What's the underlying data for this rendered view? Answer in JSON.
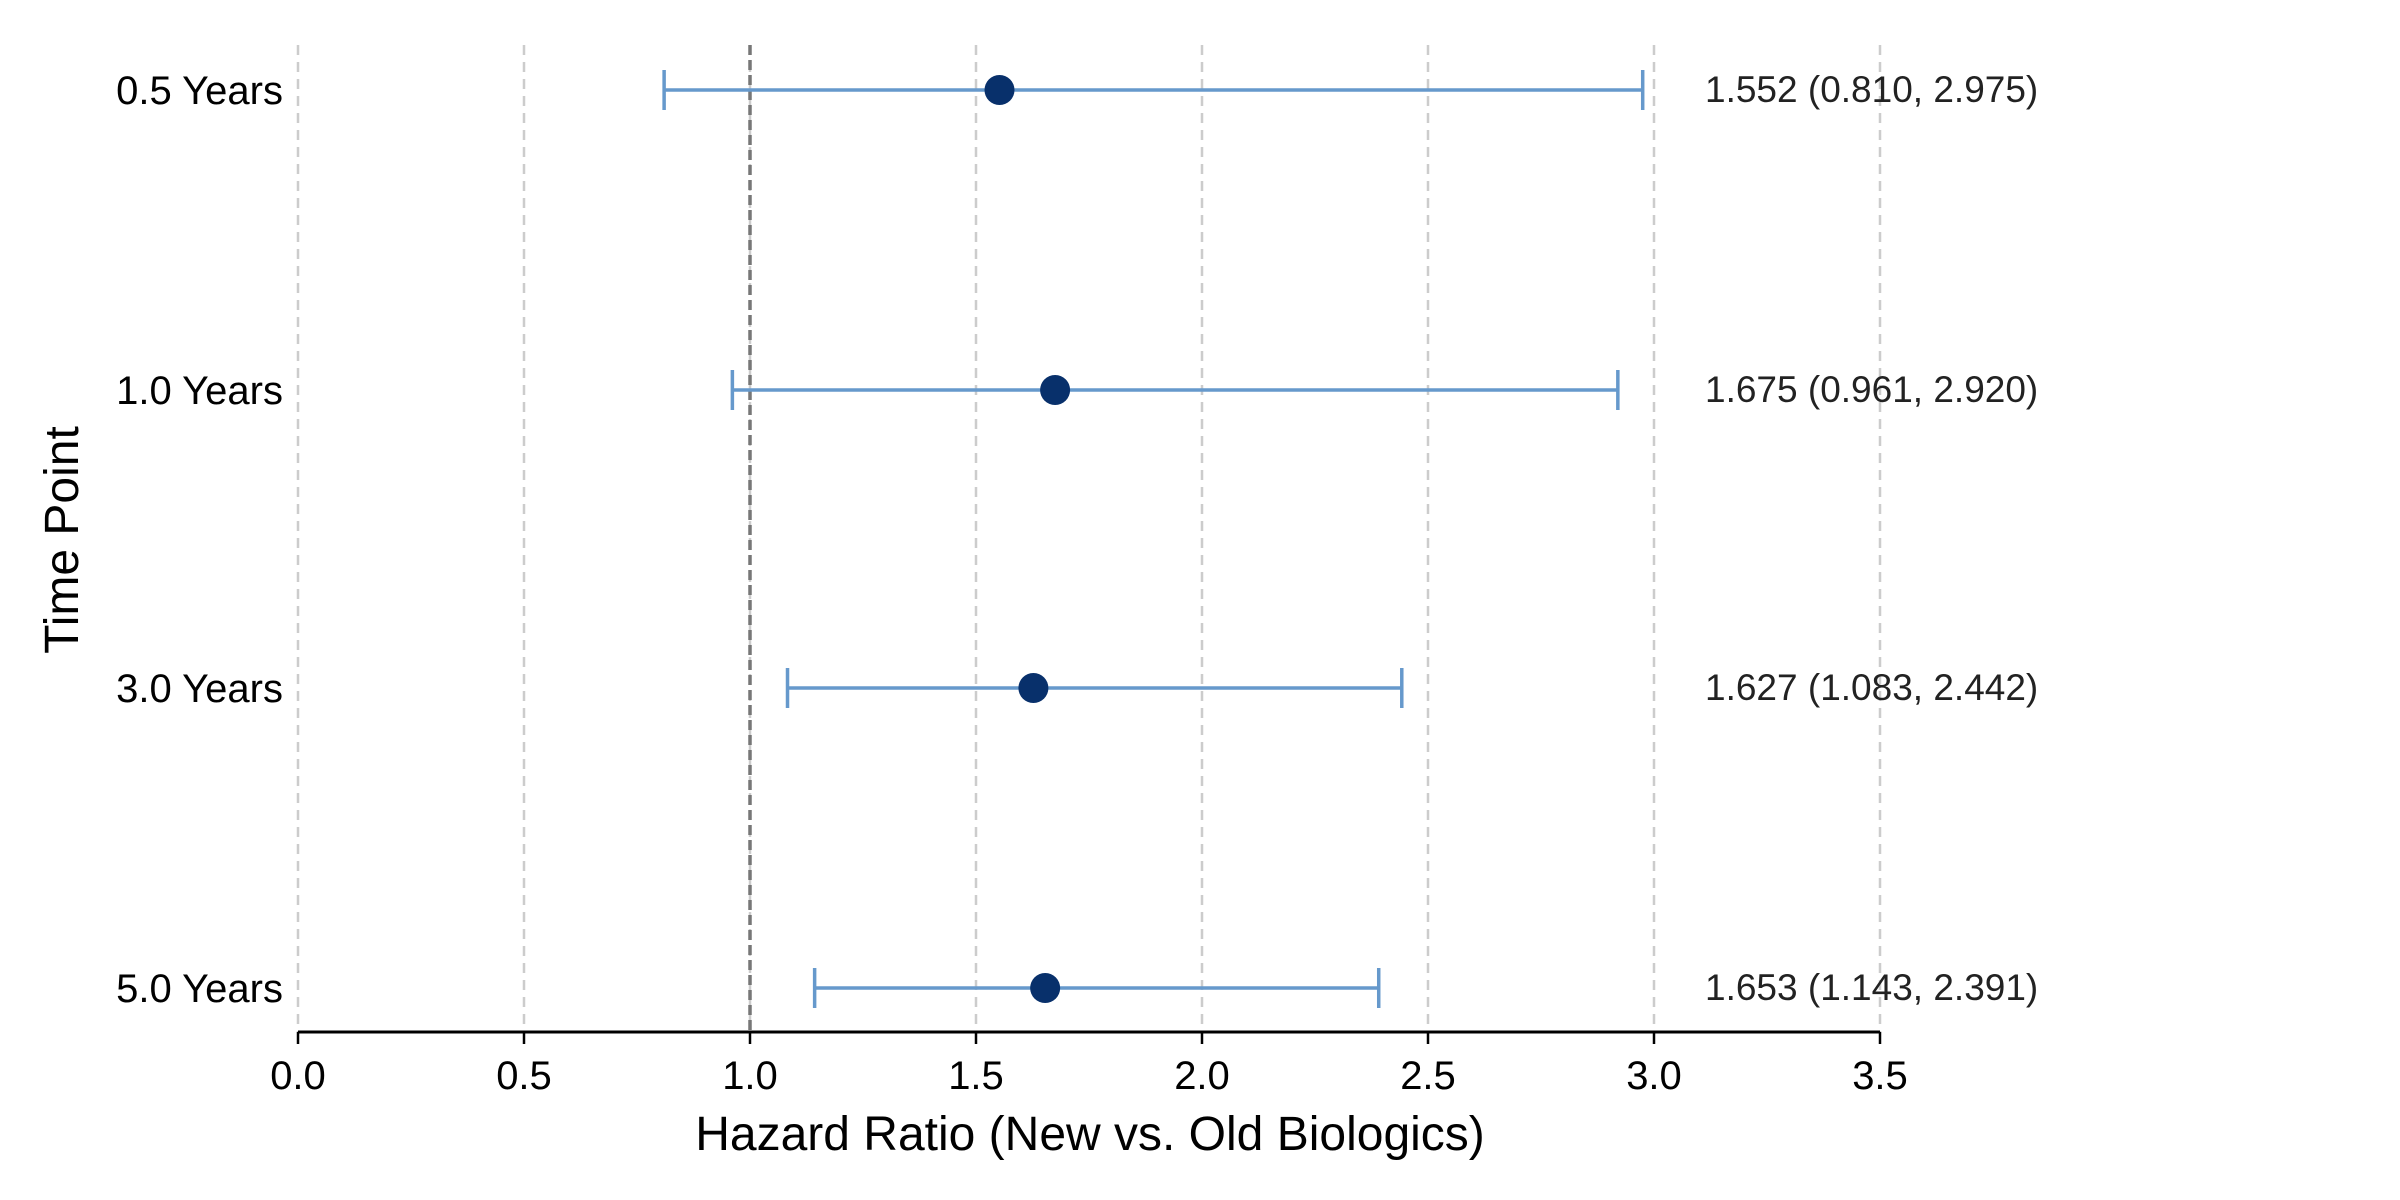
{
  "chart_data": {
    "type": "forest",
    "title": "",
    "xlabel": "Hazard Ratio (New vs. Old Biologics)",
    "ylabel": "Time Point",
    "xlim": [
      0.0,
      3.5
    ],
    "xticks": [
      "0.0",
      "0.5",
      "1.0",
      "1.5",
      "2.0",
      "2.5",
      "3.0",
      "3.5"
    ],
    "xtick_values": [
      0.0,
      0.5,
      1.0,
      1.5,
      2.0,
      2.5,
      3.0,
      3.5
    ],
    "reference_line": 1.0,
    "grid": "x-dashed",
    "categories": [
      "0.5 Years",
      "1.0 Years",
      "3.0 Years",
      "5.0 Years"
    ],
    "points": [
      {
        "label": "0.5 Years",
        "hr": 1.552,
        "lower": 0.81,
        "upper": 2.975,
        "annotation": "1.552 (0.810, 2.975)"
      },
      {
        "label": "1.0 Years",
        "hr": 1.675,
        "lower": 0.961,
        "upper": 2.92,
        "annotation": "1.675 (0.961, 2.920)"
      },
      {
        "label": "3.0 Years",
        "hr": 1.627,
        "lower": 1.083,
        "upper": 2.442,
        "annotation": "1.627 (1.083, 2.442)"
      },
      {
        "label": "5.0 Years",
        "hr": 1.653,
        "lower": 1.143,
        "upper": 2.391,
        "annotation": "1.653 (1.143, 2.391)"
      }
    ],
    "colors": {
      "point": "#08306b",
      "ci": "#6699cc",
      "reference": "#777777",
      "grid": "#cccccc",
      "axis": "#000000"
    }
  }
}
